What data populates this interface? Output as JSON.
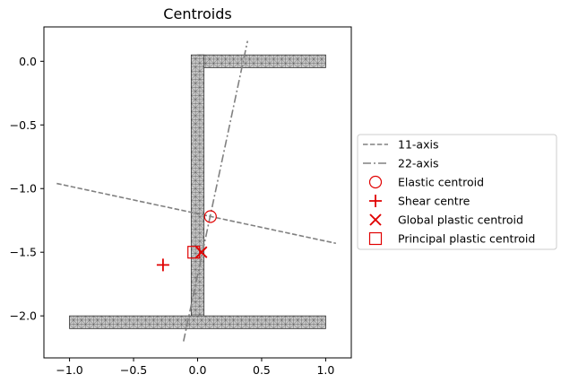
{
  "chart_data": {
    "type": "scatter",
    "title": "Centroids",
    "xlabel": "",
    "ylabel": "",
    "xlim": [
      -1.2,
      1.2
    ],
    "ylim": [
      -2.33,
      0.27
    ],
    "x_ticks": [
      -1.0,
      -0.5,
      0.0,
      0.5,
      1.0
    ],
    "x_tick_labels": [
      "−1.0",
      "−0.5",
      "0.0",
      "0.5",
      "1.0"
    ],
    "y_ticks": [
      0.0,
      -0.5,
      -1.0,
      -1.5,
      -2.0
    ],
    "y_tick_labels": [
      "0.0",
      "−0.5",
      "−1.0",
      "−1.5",
      "−2.0"
    ],
    "grid": false,
    "legend_position": "right",
    "section": {
      "type": "Z-section",
      "top_flange": {
        "x": [
          0.0,
          1.0
        ],
        "y": [
          -0.05,
          0.05
        ]
      },
      "web": {
        "x": [
          -0.05,
          0.05
        ],
        "y": [
          -2.05,
          0.05
        ]
      },
      "bottom_flange": {
        "x": [
          -1.0,
          1.0
        ],
        "y": [
          -2.1,
          -2.0
        ]
      },
      "fill_color": "#c8c8c8",
      "mesh_color": "#333333"
    },
    "series": [
      {
        "name": "11-axis",
        "kind": "line",
        "style": "dashed",
        "color": "#808080",
        "x": [
          -1.1,
          1.08
        ],
        "y": [
          -0.96,
          -1.43
        ]
      },
      {
        "name": "22-axis",
        "kind": "line",
        "style": "dashdot",
        "color": "#808080",
        "x": [
          -0.11,
          0.39
        ],
        "y": [
          -2.2,
          0.16
        ]
      },
      {
        "name": "Elastic centroid",
        "kind": "marker",
        "marker": "circle",
        "color": "#e00000",
        "x": [
          0.1
        ],
        "y": [
          -1.22
        ]
      },
      {
        "name": "Shear centre",
        "kind": "marker",
        "marker": "plus",
        "color": "#e00000",
        "x": [
          -0.27
        ],
        "y": [
          -1.6
        ]
      },
      {
        "name": "Global plastic centroid",
        "kind": "marker",
        "marker": "x",
        "color": "#e00000",
        "x": [
          0.03
        ],
        "y": [
          -1.5
        ]
      },
      {
        "name": "Principal plastic centroid",
        "kind": "marker",
        "marker": "square",
        "color": "#e00000",
        "x": [
          -0.03
        ],
        "y": [
          -1.5
        ]
      }
    ]
  }
}
